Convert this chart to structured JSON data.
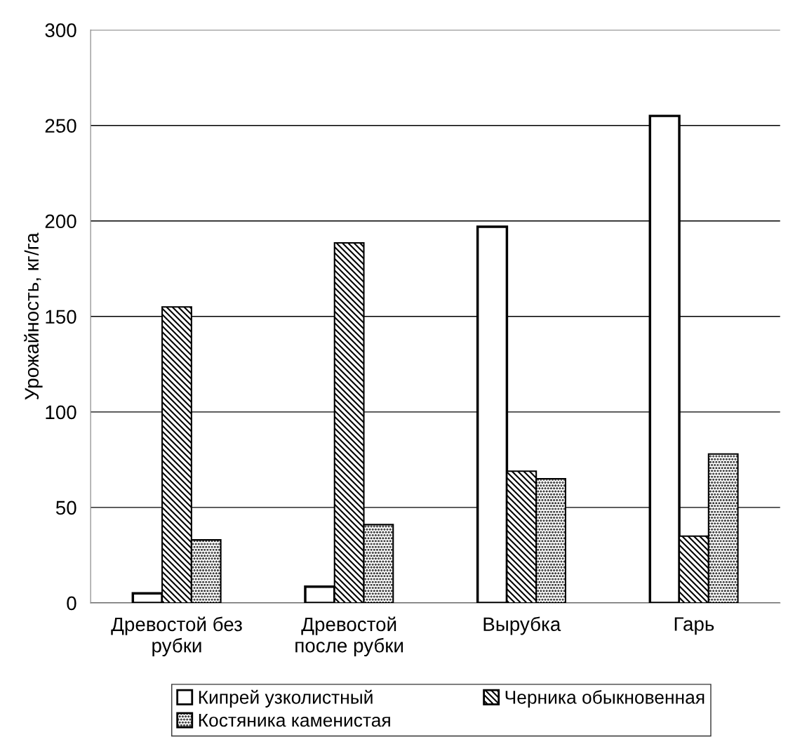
{
  "chart_data": {
    "type": "bar",
    "ylabel": "Урожайность, кг/га",
    "categories": [
      "Древостой без\nрубки",
      "Древостой\nпосле рубки",
      "Вырубка",
      "Гарь"
    ],
    "series": [
      {
        "name": "Кипрей узколистный",
        "color": "#ffffff",
        "values": [
          5,
          8.5,
          197,
          255
        ]
      },
      {
        "name": "Черника обыкновенная",
        "color": "#000000",
        "values": [
          155,
          188.5,
          69,
          35
        ]
      },
      {
        "name": "Костяника каменистая",
        "color": "#000000",
        "values": [
          33,
          41,
          65,
          78
        ]
      }
    ],
    "ylim": [
      0,
      300
    ],
    "yticks": [
      0,
      50,
      100,
      150,
      200,
      250,
      300
    ],
    "grid": "y",
    "legend": "bottom"
  }
}
